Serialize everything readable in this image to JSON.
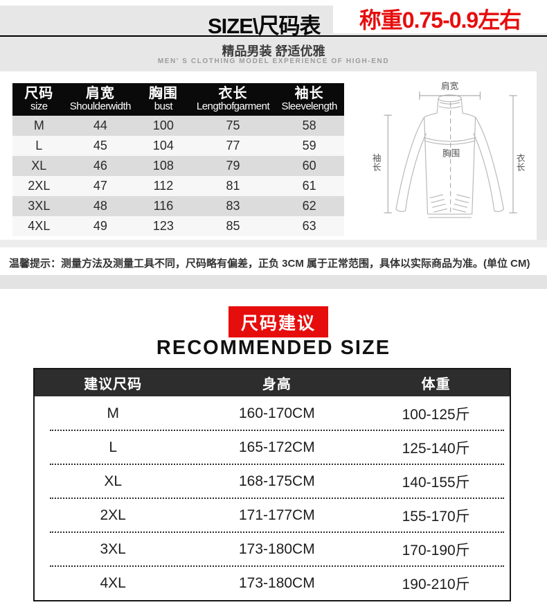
{
  "header": {
    "title": "SIZE\\尺码表",
    "highlight": "称重0.75-0.9左右",
    "subtitle_cn": "精品男装 舒适优雅",
    "subtitle_en": "MEN' S CLOTHING MODEL EXPERIENCE OF HIGH-END",
    "accent_red": "#e60d0d"
  },
  "size_table": {
    "columns": [
      {
        "cn": "尺码",
        "en": "size"
      },
      {
        "cn": "肩宽",
        "en": "Shoulder width"
      },
      {
        "cn": "胸围",
        "en": "bust"
      },
      {
        "cn": "衣长",
        "en": "Length of garment"
      },
      {
        "cn": "袖长",
        "en": "Sleeve length"
      }
    ],
    "rows": [
      {
        "size": "M",
        "shoulder": "44",
        "bust": "100",
        "length": "75",
        "sleeve": "58"
      },
      {
        "size": "L",
        "shoulder": "45",
        "bust": "104",
        "length": "77",
        "sleeve": "59"
      },
      {
        "size": "XL",
        "shoulder": "46",
        "bust": "108",
        "length": "79",
        "sleeve": "60"
      },
      {
        "size": "2XL",
        "shoulder": "47",
        "bust": "112",
        "length": "81",
        "sleeve": "61"
      },
      {
        "size": "3XL",
        "shoulder": "48",
        "bust": "116",
        "length": "83",
        "sleeve": "62"
      },
      {
        "size": "4XL",
        "shoulder": "49",
        "bust": "123",
        "length": "85",
        "sleeve": "63"
      }
    ]
  },
  "diagram": {
    "labels": {
      "shoulder": "肩宽",
      "sleeve": "袖长",
      "bust": "胸围",
      "length": "衣长"
    }
  },
  "notice": "温馨提示：测量方法及测量工具不同，尺码略有偏差，正负 3CM 属于正常范围，具体以实际商品为准。(单位 CM)",
  "recommend": {
    "badge": "尺码建议",
    "heading": "RECOMMENDED SIZE",
    "columns": [
      "建议尺码",
      "身高",
      "体重"
    ],
    "rows": [
      {
        "size": "M",
        "height": "160-170CM",
        "weight": "100-125斤"
      },
      {
        "size": "L",
        "height": "165-172CM",
        "weight": "125-140斤"
      },
      {
        "size": "XL",
        "height": "168-175CM",
        "weight": "140-155斤"
      },
      {
        "size": "2XL",
        "height": "171-177CM",
        "weight": "155-170斤"
      },
      {
        "size": "3XL",
        "height": "173-180CM",
        "weight": "170-190斤"
      },
      {
        "size": "4XL",
        "height": "173-180CM",
        "weight": "190-210斤"
      }
    ]
  }
}
